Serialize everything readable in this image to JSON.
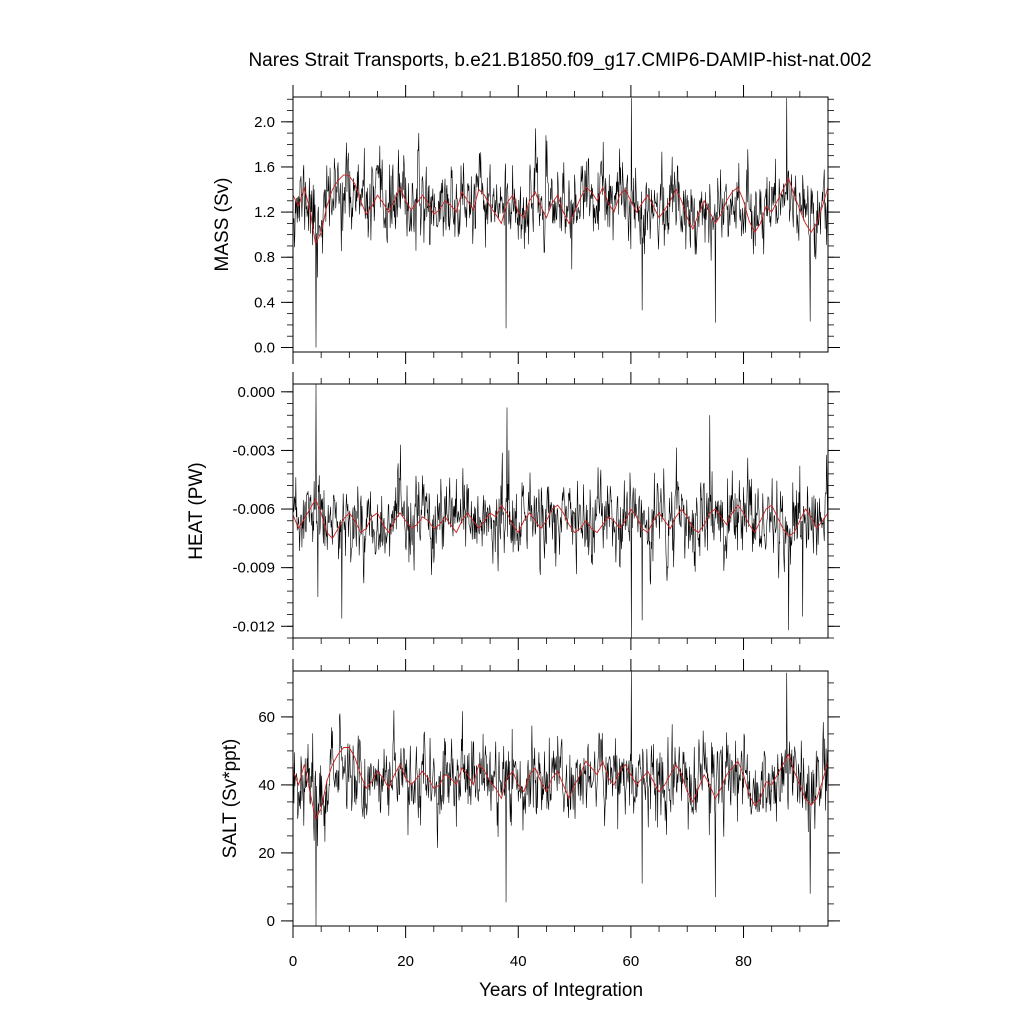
{
  "chart_data": {
    "type": "line",
    "title": "Nares Strait Transports, b.e21.B1850.f09_g17.CMIP6-DAMIP-hist-nat.002",
    "xlabel": "Years of Integration",
    "xlim": [
      0,
      95
    ],
    "xticks": [
      0,
      20,
      40,
      60,
      80
    ],
    "xtick_labels": [
      "0",
      "20",
      "40",
      "60",
      "80"
    ],
    "grid": false,
    "panels": [
      {
        "key": "mass",
        "ylabel": "MASS (Sv)",
        "ylim": [
          -0.04,
          2.22
        ],
        "yticks": [
          0.0,
          0.4,
          0.8,
          1.2,
          1.6,
          2.0
        ],
        "ytick_labels": [
          "0.0",
          "0.4",
          "0.8",
          "1.2",
          "1.6",
          "2.0"
        ],
        "minor_step": 0.1,
        "series": [
          {
            "role": "monthly",
            "color": "#000000",
            "mean": 1.28,
            "sd": 0.19,
            "seed": 11,
            "spikes": [
              [
                4.1,
                0.0
              ],
              [
                4.3,
                0.62
              ],
              [
                37.8,
                0.17
              ],
              [
                60.1,
                2.21
              ],
              [
                62.0,
                0.33
              ],
              [
                75.0,
                0.22
              ],
              [
                87.7,
                2.21
              ],
              [
                91.8,
                0.23
              ]
            ]
          },
          {
            "role": "smoothed",
            "color": "#cc2222",
            "x": [
              0,
              1,
              2,
              3,
              4,
              5,
              6,
              7,
              8,
              9,
              10,
              11,
              12,
              13,
              14,
              15,
              16,
              17,
              18,
              19,
              20,
              21,
              22,
              23,
              24,
              25,
              26,
              27,
              28,
              29,
              30,
              31,
              32,
              33,
              34,
              35,
              36,
              37,
              38,
              39,
              40,
              41,
              42,
              43,
              44,
              45,
              46,
              47,
              48,
              49,
              50,
              51,
              52,
              53,
              54,
              55,
              56,
              57,
              58,
              59,
              60,
              61,
              62,
              63,
              64,
              65,
              66,
              67,
              68,
              69,
              70,
              71,
              72,
              73,
              74,
              75,
              76,
              77,
              78,
              79,
              80,
              81,
              82,
              83,
              84,
              85,
              86,
              87,
              88,
              89,
              90,
              91,
              92,
              93,
              94,
              95
            ],
            "values": [
              1.35,
              1.25,
              1.42,
              1.22,
              0.92,
              1.02,
              1.25,
              1.4,
              1.48,
              1.53,
              1.52,
              1.45,
              1.3,
              1.18,
              1.25,
              1.35,
              1.28,
              1.2,
              1.3,
              1.42,
              1.3,
              1.22,
              1.28,
              1.35,
              1.28,
              1.18,
              1.22,
              1.3,
              1.26,
              1.2,
              1.38,
              1.3,
              1.22,
              1.4,
              1.35,
              1.25,
              1.18,
              1.1,
              1.28,
              1.35,
              1.2,
              1.15,
              1.3,
              1.38,
              1.25,
              1.15,
              1.28,
              1.35,
              1.2,
              1.1,
              1.2,
              1.32,
              1.42,
              1.38,
              1.3,
              1.42,
              1.28,
              1.2,
              1.35,
              1.4,
              1.3,
              1.2,
              1.28,
              1.35,
              1.25,
              1.15,
              1.22,
              1.3,
              1.4,
              1.3,
              1.15,
              1.05,
              1.18,
              1.3,
              1.2,
              1.1,
              1.18,
              1.3,
              1.38,
              1.42,
              1.3,
              1.12,
              1.02,
              1.1,
              1.25,
              1.2,
              1.3,
              1.4,
              1.5,
              1.35,
              1.22,
              1.1,
              1.02,
              1.1,
              1.25,
              1.42
            ]
          }
        ]
      },
      {
        "key": "heat",
        "ylabel": "HEAT (PW)",
        "ylim": [
          -0.0126,
          0.0004
        ],
        "yticks": [
          -0.012,
          -0.009,
          -0.006,
          -0.003,
          0.0
        ],
        "ytick_labels": [
          "-0.012",
          "-0.009",
          "-0.006",
          "-0.003",
          "0.000"
        ],
        "minor_step": 0.0006,
        "series": [
          {
            "role": "monthly",
            "color": "#000000",
            "mean": -0.0066,
            "sd": 0.0011,
            "seed": 23,
            "spikes": [
              [
                4.1,
                0.0004
              ],
              [
                4.4,
                -0.0105
              ],
              [
                8.7,
                -0.0116
              ],
              [
                38.0,
                -0.0008
              ],
              [
                60.1,
                -0.0126
              ],
              [
                62.0,
                -0.0117
              ],
              [
                74.0,
                -0.0012
              ],
              [
                88.0,
                -0.0122
              ],
              [
                90.5,
                -0.0115
              ],
              [
                95.0,
                -0.01
              ]
            ]
          },
          {
            "role": "smoothed",
            "color": "#cc2222",
            "x": [
              0,
              1,
              2,
              3,
              4,
              5,
              6,
              7,
              8,
              9,
              10,
              11,
              12,
              13,
              14,
              15,
              16,
              17,
              18,
              19,
              20,
              21,
              22,
              23,
              24,
              25,
              26,
              27,
              28,
              29,
              30,
              31,
              32,
              33,
              34,
              35,
              36,
              37,
              38,
              39,
              40,
              41,
              42,
              43,
              44,
              45,
              46,
              47,
              48,
              49,
              50,
              51,
              52,
              53,
              54,
              55,
              56,
              57,
              58,
              59,
              60,
              61,
              62,
              63,
              64,
              65,
              66,
              67,
              68,
              69,
              70,
              71,
              72,
              73,
              74,
              75,
              76,
              77,
              78,
              79,
              80,
              81,
              82,
              83,
              84,
              85,
              86,
              87,
              88,
              89,
              90,
              91,
              92,
              93,
              94,
              95
            ],
            "values": [
              -0.0063,
              -0.007,
              -0.0065,
              -0.006,
              -0.0055,
              -0.0062,
              -0.0072,
              -0.0075,
              -0.007,
              -0.0065,
              -0.0062,
              -0.0066,
              -0.0072,
              -0.007,
              -0.0064,
              -0.0062,
              -0.0068,
              -0.0072,
              -0.0066,
              -0.0062,
              -0.0066,
              -0.007,
              -0.0068,
              -0.0064,
              -0.0066,
              -0.007,
              -0.0068,
              -0.0064,
              -0.0068,
              -0.0072,
              -0.0066,
              -0.0062,
              -0.0066,
              -0.007,
              -0.0066,
              -0.0062,
              -0.0064,
              -0.0058,
              -0.0062,
              -0.0068,
              -0.0072,
              -0.0066,
              -0.0062,
              -0.0066,
              -0.007,
              -0.0066,
              -0.006,
              -0.0058,
              -0.0062,
              -0.0068,
              -0.0072,
              -0.007,
              -0.0066,
              -0.007,
              -0.0072,
              -0.0068,
              -0.0064,
              -0.0066,
              -0.007,
              -0.0066,
              -0.006,
              -0.0064,
              -0.007,
              -0.0072,
              -0.0066,
              -0.0062,
              -0.0066,
              -0.007,
              -0.0064,
              -0.006,
              -0.0064,
              -0.007,
              -0.0072,
              -0.0068,
              -0.0062,
              -0.006,
              -0.0064,
              -0.0068,
              -0.0062,
              -0.0058,
              -0.0062,
              -0.0068,
              -0.0072,
              -0.0066,
              -0.006,
              -0.0058,
              -0.0064,
              -0.007,
              -0.0074,
              -0.0072,
              -0.0066,
              -0.006,
              -0.0064,
              -0.007,
              -0.0066,
              -0.0062
            ]
          }
        ]
      },
      {
        "key": "salt",
        "ylabel": "SALT (Sv*ppt)",
        "ylim": [
          -1.5,
          73.5
        ],
        "yticks": [
          0,
          20,
          40,
          60
        ],
        "ytick_labels": [
          "0",
          "20",
          "40",
          "60"
        ],
        "minor_step": 5,
        "series": [
          {
            "role": "monthly",
            "color": "#000000",
            "mean": 42.0,
            "sd": 6.5,
            "seed": 37,
            "spikes": [
              [
                4.1,
                -1.5
              ],
              [
                4.3,
                22.0
              ],
              [
                37.8,
                5.5
              ],
              [
                60.1,
                73.5
              ],
              [
                62.0,
                11.0
              ],
              [
                75.0,
                7.0
              ],
              [
                87.7,
                73.0
              ],
              [
                91.8,
                8.0
              ]
            ]
          },
          {
            "role": "smoothed",
            "color": "#cc2222",
            "x": [
              0,
              1,
              2,
              3,
              4,
              5,
              6,
              7,
              8,
              9,
              10,
              11,
              12,
              13,
              14,
              15,
              16,
              17,
              18,
              19,
              20,
              21,
              22,
              23,
              24,
              25,
              26,
              27,
              28,
              29,
              30,
              31,
              32,
              33,
              34,
              35,
              36,
              37,
              38,
              39,
              40,
              41,
              42,
              43,
              44,
              45,
              46,
              47,
              48,
              49,
              50,
              51,
              52,
              53,
              54,
              55,
              56,
              57,
              58,
              59,
              60,
              61,
              62,
              63,
              64,
              65,
              66,
              67,
              68,
              69,
              70,
              71,
              72,
              73,
              74,
              75,
              76,
              77,
              78,
              79,
              80,
              81,
              82,
              83,
              84,
              85,
              86,
              87,
              88,
              89,
              90,
              91,
              92,
              93,
              94,
              95
            ],
            "values": [
              44,
              40,
              46,
              38,
              30,
              33,
              41,
              46,
              49,
              51,
              51,
              48,
              43,
              39,
              41,
              44,
              42,
              39,
              43,
              46,
              42,
              40,
              42,
              44,
              42,
              39,
              40,
              43,
              42,
              40,
              45,
              43,
              40,
              46,
              44,
              41,
              39,
              36,
              42,
              44,
              40,
              38,
              43,
              45,
              41,
              38,
              42,
              44,
              40,
              36,
              40,
              43,
              47,
              45,
              43,
              47,
              42,
              40,
              44,
              46,
              43,
              40,
              42,
              44,
              41,
              38,
              40,
              43,
              46,
              43,
              38,
              35,
              39,
              43,
              40,
              36,
              39,
              43,
              45,
              47,
              43,
              37,
              34,
              36,
              41,
              40,
              43,
              46,
              49,
              44,
              40,
              36,
              34,
              36,
              41,
              47
            ]
          }
        ]
      }
    ]
  }
}
